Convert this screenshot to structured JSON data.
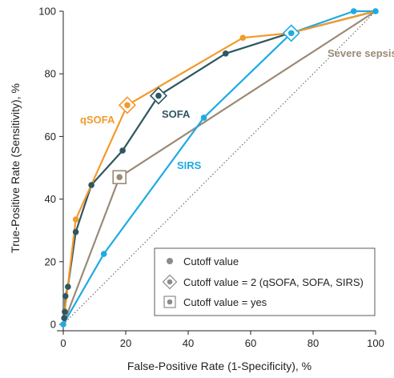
{
  "chart_data": {
    "type": "line",
    "xlabel": "False-Positive Rate (1-Specificity), %",
    "ylabel": "True-Positive Rate (Sensitivity), %",
    "xlim": [
      0,
      100
    ],
    "ylim": [
      0,
      100
    ],
    "x_ticks": [
      "0",
      "20",
      "40",
      "60",
      "80",
      "100"
    ],
    "y_ticks": [
      "0",
      "20",
      "40",
      "60",
      "80",
      "100"
    ],
    "grid": false,
    "reference_line": {
      "style": "dotted",
      "from": [
        0,
        0
      ],
      "to": [
        100,
        100
      ]
    },
    "series": [
      {
        "name": "qSOFA",
        "color": "#F39A2B",
        "points": [
          [
            0,
            0
          ],
          [
            4,
            33.5
          ],
          [
            20.5,
            70
          ],
          [
            57.5,
            91.5
          ],
          [
            72.5,
            93
          ],
          [
            100,
            100
          ]
        ],
        "markers": [
          [
            4,
            33.5
          ],
          [
            57.5,
            91.5
          ]
        ],
        "cutoff_2": [
          20.5,
          70
        ]
      },
      {
        "name": "SOFA",
        "color": "#2E5661",
        "points": [
          [
            0,
            0
          ],
          [
            0.3,
            2
          ],
          [
            0.5,
            4
          ],
          [
            0.7,
            9
          ],
          [
            1.5,
            12
          ],
          [
            4,
            29.5
          ],
          [
            9,
            44.5
          ],
          [
            19,
            55.5
          ],
          [
            30.5,
            73
          ],
          [
            52,
            86.5
          ],
          [
            72.5,
            93
          ],
          [
            100,
            100
          ]
        ],
        "markers": [
          [
            0.3,
            2
          ],
          [
            0.5,
            4
          ],
          [
            0.7,
            9
          ],
          [
            1.5,
            12
          ],
          [
            4,
            29.5
          ],
          [
            9,
            44.5
          ],
          [
            19,
            55.5
          ],
          [
            52,
            86.5
          ]
        ],
        "cutoff_2": [
          30.5,
          73
        ]
      },
      {
        "name": "SIRS",
        "color": "#1DABE3",
        "points": [
          [
            0,
            0
          ],
          [
            13,
            22.5
          ],
          [
            45,
            66
          ],
          [
            73,
            93
          ],
          [
            93,
            100
          ],
          [
            100,
            100
          ]
        ],
        "markers": [
          [
            0,
            0
          ],
          [
            13,
            22.5
          ],
          [
            45,
            66
          ],
          [
            93,
            100
          ],
          [
            100,
            100
          ]
        ],
        "cutoff_2": [
          73,
          93
        ]
      },
      {
        "name": "Severe sepsis",
        "color": "#9B8A78",
        "points": [
          [
            0,
            0
          ],
          [
            18,
            47
          ],
          [
            100,
            100
          ]
        ],
        "markers": [],
        "cutoff_yes": [
          18,
          47
        ]
      }
    ],
    "series_labels": {
      "qSOFA": "qSOFA",
      "SOFA": "SOFA",
      "SIRS": "SIRS",
      "Severe sepsis": "Severe sepsis"
    },
    "legend": {
      "placement": "bottom-right",
      "items": [
        {
          "symbol": "circle",
          "label": "Cutoff value"
        },
        {
          "symbol": "diamond",
          "label": "Cutoff value = 2 (qSOFA, SOFA, SIRS)"
        },
        {
          "symbol": "square",
          "label": "Cutoff value = yes"
        }
      ]
    }
  }
}
